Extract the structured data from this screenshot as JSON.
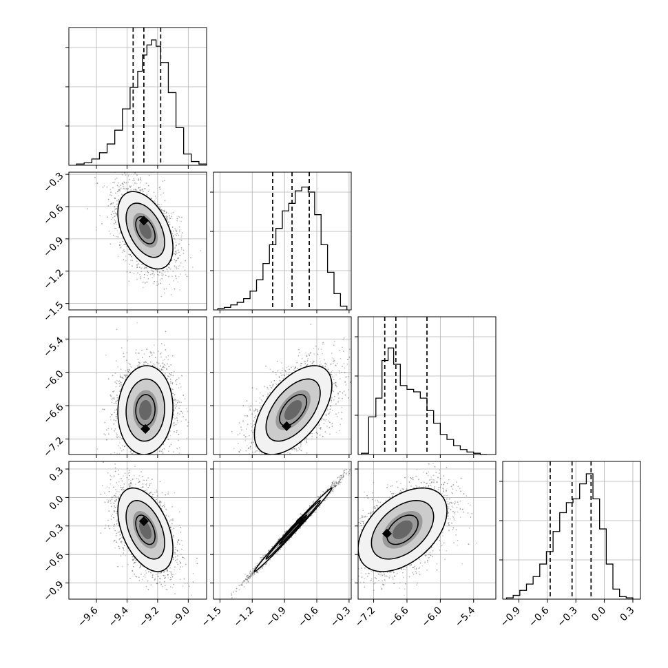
{
  "chart_data": {
    "type": "corner",
    "title": "",
    "parameters": [
      "",
      "",
      "",
      ""
    ],
    "ranges": [
      [
        -9.78,
        -8.88
      ],
      [
        -1.56,
        -0.28
      ],
      [
        -7.48,
        -5.0
      ],
      [
        -1.07,
        0.38
      ]
    ],
    "tick_values": [
      [
        -9.6,
        -9.4,
        -9.2,
        -9.0
      ],
      [
        -1.5,
        -1.2,
        -0.9,
        -0.6,
        -0.3
      ],
      [
        -7.2,
        -6.6,
        -6.0,
        -5.4
      ],
      [
        -0.9,
        -0.6,
        -0.3,
        0.0,
        0.3
      ]
    ],
    "tick_labels": [
      [
        "−9.6",
        "−9.4",
        "−9.2",
        "−9.0"
      ],
      [
        "−1.5",
        "−1.2",
        "−0.9",
        "−0.6",
        "−0.3"
      ],
      [
        "−7.2",
        "−6.6",
        "−6.0",
        "−5.4"
      ],
      [
        "−0.9",
        "−0.6",
        "−0.3",
        "0.0",
        "0.3"
      ]
    ],
    "grid": true,
    "quantiles": [
      [
        -9.36,
        -9.29,
        -9.18
      ],
      [
        -1.01,
        -0.83,
        -0.67
      ],
      [
        -7.0,
        -6.8,
        -6.24
      ],
      [
        -0.57,
        -0.34,
        -0.14
      ]
    ],
    "histograms": [
      {
        "bins": [
          -9.73,
          -9.68,
          -9.63,
          -9.58,
          -9.53,
          -9.48,
          -9.43,
          -9.38,
          -9.33,
          -9.3,
          -9.27,
          -9.24,
          -9.21,
          -9.18,
          -9.13,
          -9.08,
          -9.03,
          -8.98,
          -8.93
        ],
        "counts": [
          0.01,
          0.02,
          0.05,
          0.1,
          0.17,
          0.28,
          0.45,
          0.62,
          0.75,
          0.88,
          0.96,
          1.0,
          0.95,
          0.82,
          0.58,
          0.3,
          0.09,
          0.03,
          0.01
        ]
      },
      {
        "bins": [
          -1.52,
          -1.46,
          -1.4,
          -1.34,
          -1.28,
          -1.22,
          -1.16,
          -1.1,
          -1.04,
          -0.98,
          -0.92,
          -0.86,
          -0.8,
          -0.74,
          -0.68,
          -0.62,
          -0.56,
          -0.5,
          -0.44,
          -0.38
        ],
        "counts": [
          0.01,
          0.02,
          0.04,
          0.06,
          0.09,
          0.15,
          0.24,
          0.37,
          0.52,
          0.65,
          0.79,
          0.85,
          0.95,
          0.98,
          0.94,
          0.76,
          0.52,
          0.3,
          0.13,
          0.03
        ]
      },
      {
        "bins": [
          -7.42,
          -7.29,
          -7.16,
          -7.05,
          -6.94,
          -6.84,
          -6.72,
          -6.6,
          -6.48,
          -6.36,
          -6.24,
          -6.12,
          -6.0,
          -5.88,
          -5.76,
          -5.64,
          -5.52,
          -5.4,
          -5.28
        ],
        "counts": [
          0.01,
          0.3,
          0.45,
          0.75,
          0.85,
          0.72,
          0.55,
          0.52,
          0.5,
          0.45,
          0.35,
          0.25,
          0.16,
          0.12,
          0.07,
          0.04,
          0.02,
          0.01,
          0.0
        ]
      },
      {
        "bins": [
          -1.03,
          -0.96,
          -0.89,
          -0.82,
          -0.75,
          -0.68,
          -0.61,
          -0.54,
          -0.47,
          -0.4,
          -0.33,
          -0.26,
          -0.19,
          -0.12,
          -0.05,
          0.02,
          0.09,
          0.16,
          0.23
        ],
        "counts": [
          0.01,
          0.03,
          0.07,
          0.12,
          0.18,
          0.28,
          0.38,
          0.54,
          0.69,
          0.77,
          0.8,
          0.92,
          1.0,
          0.8,
          0.56,
          0.28,
          0.08,
          0.02,
          0.01
        ]
      }
    ],
    "pairs": [
      {
        "row": 1,
        "col": 0,
        "mean": [
          -9.28,
          -0.82
        ],
        "sd": [
          0.09,
          0.18
        ],
        "rho": -0.45,
        "mode": [
          -9.29,
          -0.73
        ],
        "contour_levels": [
          1.0,
          2.0
        ]
      },
      {
        "row": 2,
        "col": 0,
        "mean": [
          -9.28,
          -6.68
        ],
        "sd": [
          0.09,
          0.4
        ],
        "rho": 0.05,
        "mode": [
          -9.28,
          -7.02
        ],
        "contour_levels": [
          1.0,
          2.0
        ]
      },
      {
        "row": 2,
        "col": 1,
        "mean": [
          -0.82,
          -6.68
        ],
        "sd": [
          0.18,
          0.4
        ],
        "rho": 0.55,
        "mode": [
          -0.88,
          -6.97
        ],
        "contour_levels": [
          1.0,
          2.0
        ]
      },
      {
        "row": 3,
        "col": 0,
        "mean": [
          -9.28,
          -0.34
        ],
        "sd": [
          0.09,
          0.22
        ],
        "rho": -0.45,
        "mode": [
          -9.29,
          -0.25
        ],
        "contour_levels": [
          1.0,
          2.0
        ]
      },
      {
        "row": 3,
        "col": 1,
        "mean": [
          -0.82,
          -0.34
        ],
        "sd": [
          0.18,
          0.22
        ],
        "rho": 0.995,
        "mode": [
          -0.75,
          -0.25
        ],
        "contour_levels": [
          1.0,
          2.0
        ]
      },
      {
        "row": 3,
        "col": 2,
        "mean": [
          -6.68,
          -0.34
        ],
        "sd": [
          0.4,
          0.22
        ],
        "rho": 0.45,
        "mode": [
          -6.96,
          -0.38
        ],
        "contour_levels": [
          1.0,
          2.0
        ]
      }
    ]
  }
}
